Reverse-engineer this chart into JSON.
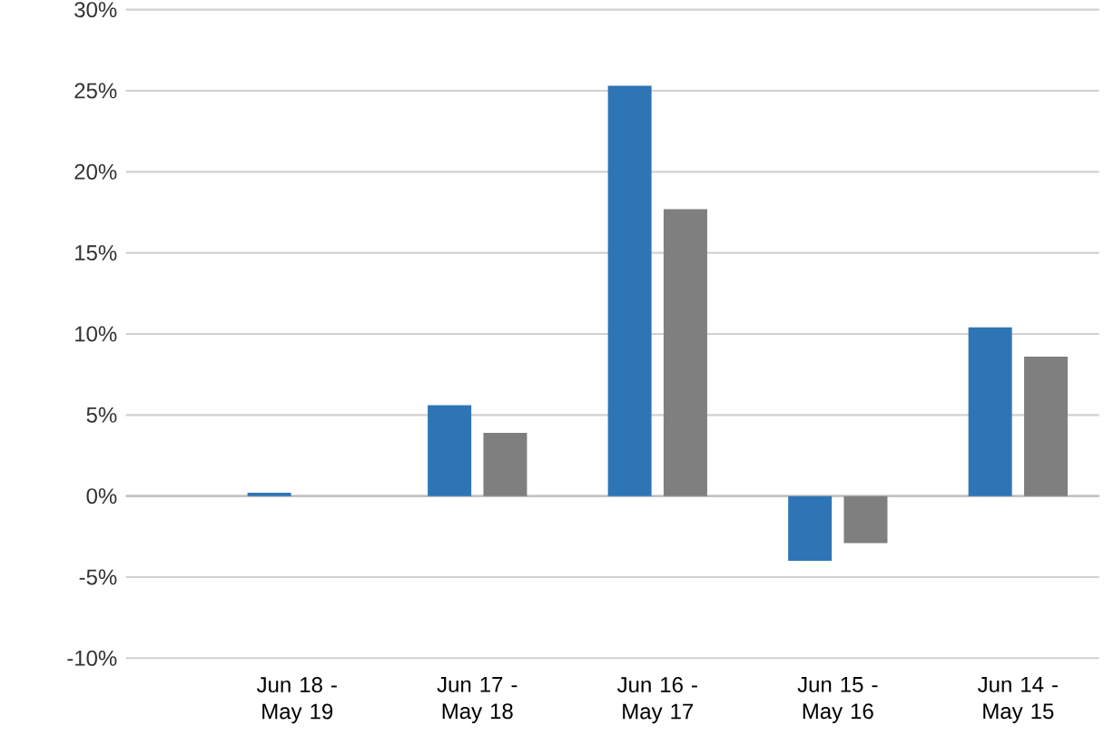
{
  "chart_data": {
    "type": "bar",
    "categories": [
      "Jun 18 - May 19",
      "Jun 17 - May 18",
      "Jun 16 - May 17",
      "Jun 15 - May 16",
      "Jun 14 - May 15"
    ],
    "series": [
      {
        "color": "#2e75b6",
        "values": [
          0.2,
          5.6,
          25.3,
          -4.0,
          10.4
        ]
      },
      {
        "color": "#7f7f7f",
        "values": [
          0,
          3.9,
          17.7,
          -2.9,
          8.6
        ]
      }
    ],
    "ylim": [
      -10,
      30
    ],
    "yticks": [
      {
        "value": -10,
        "label": "-10%"
      },
      {
        "value": -5,
        "label": "-5%"
      },
      {
        "value": 0,
        "label": "0%"
      },
      {
        "value": 5,
        "label": "5%"
      },
      {
        "value": 10,
        "label": "10%"
      },
      {
        "value": 15,
        "label": "15%"
      },
      {
        "value": 20,
        "label": "20%"
      },
      {
        "value": 25,
        "label": "25%"
      },
      {
        "value": 30,
        "label": "30%"
      }
    ],
    "grid": "y"
  }
}
